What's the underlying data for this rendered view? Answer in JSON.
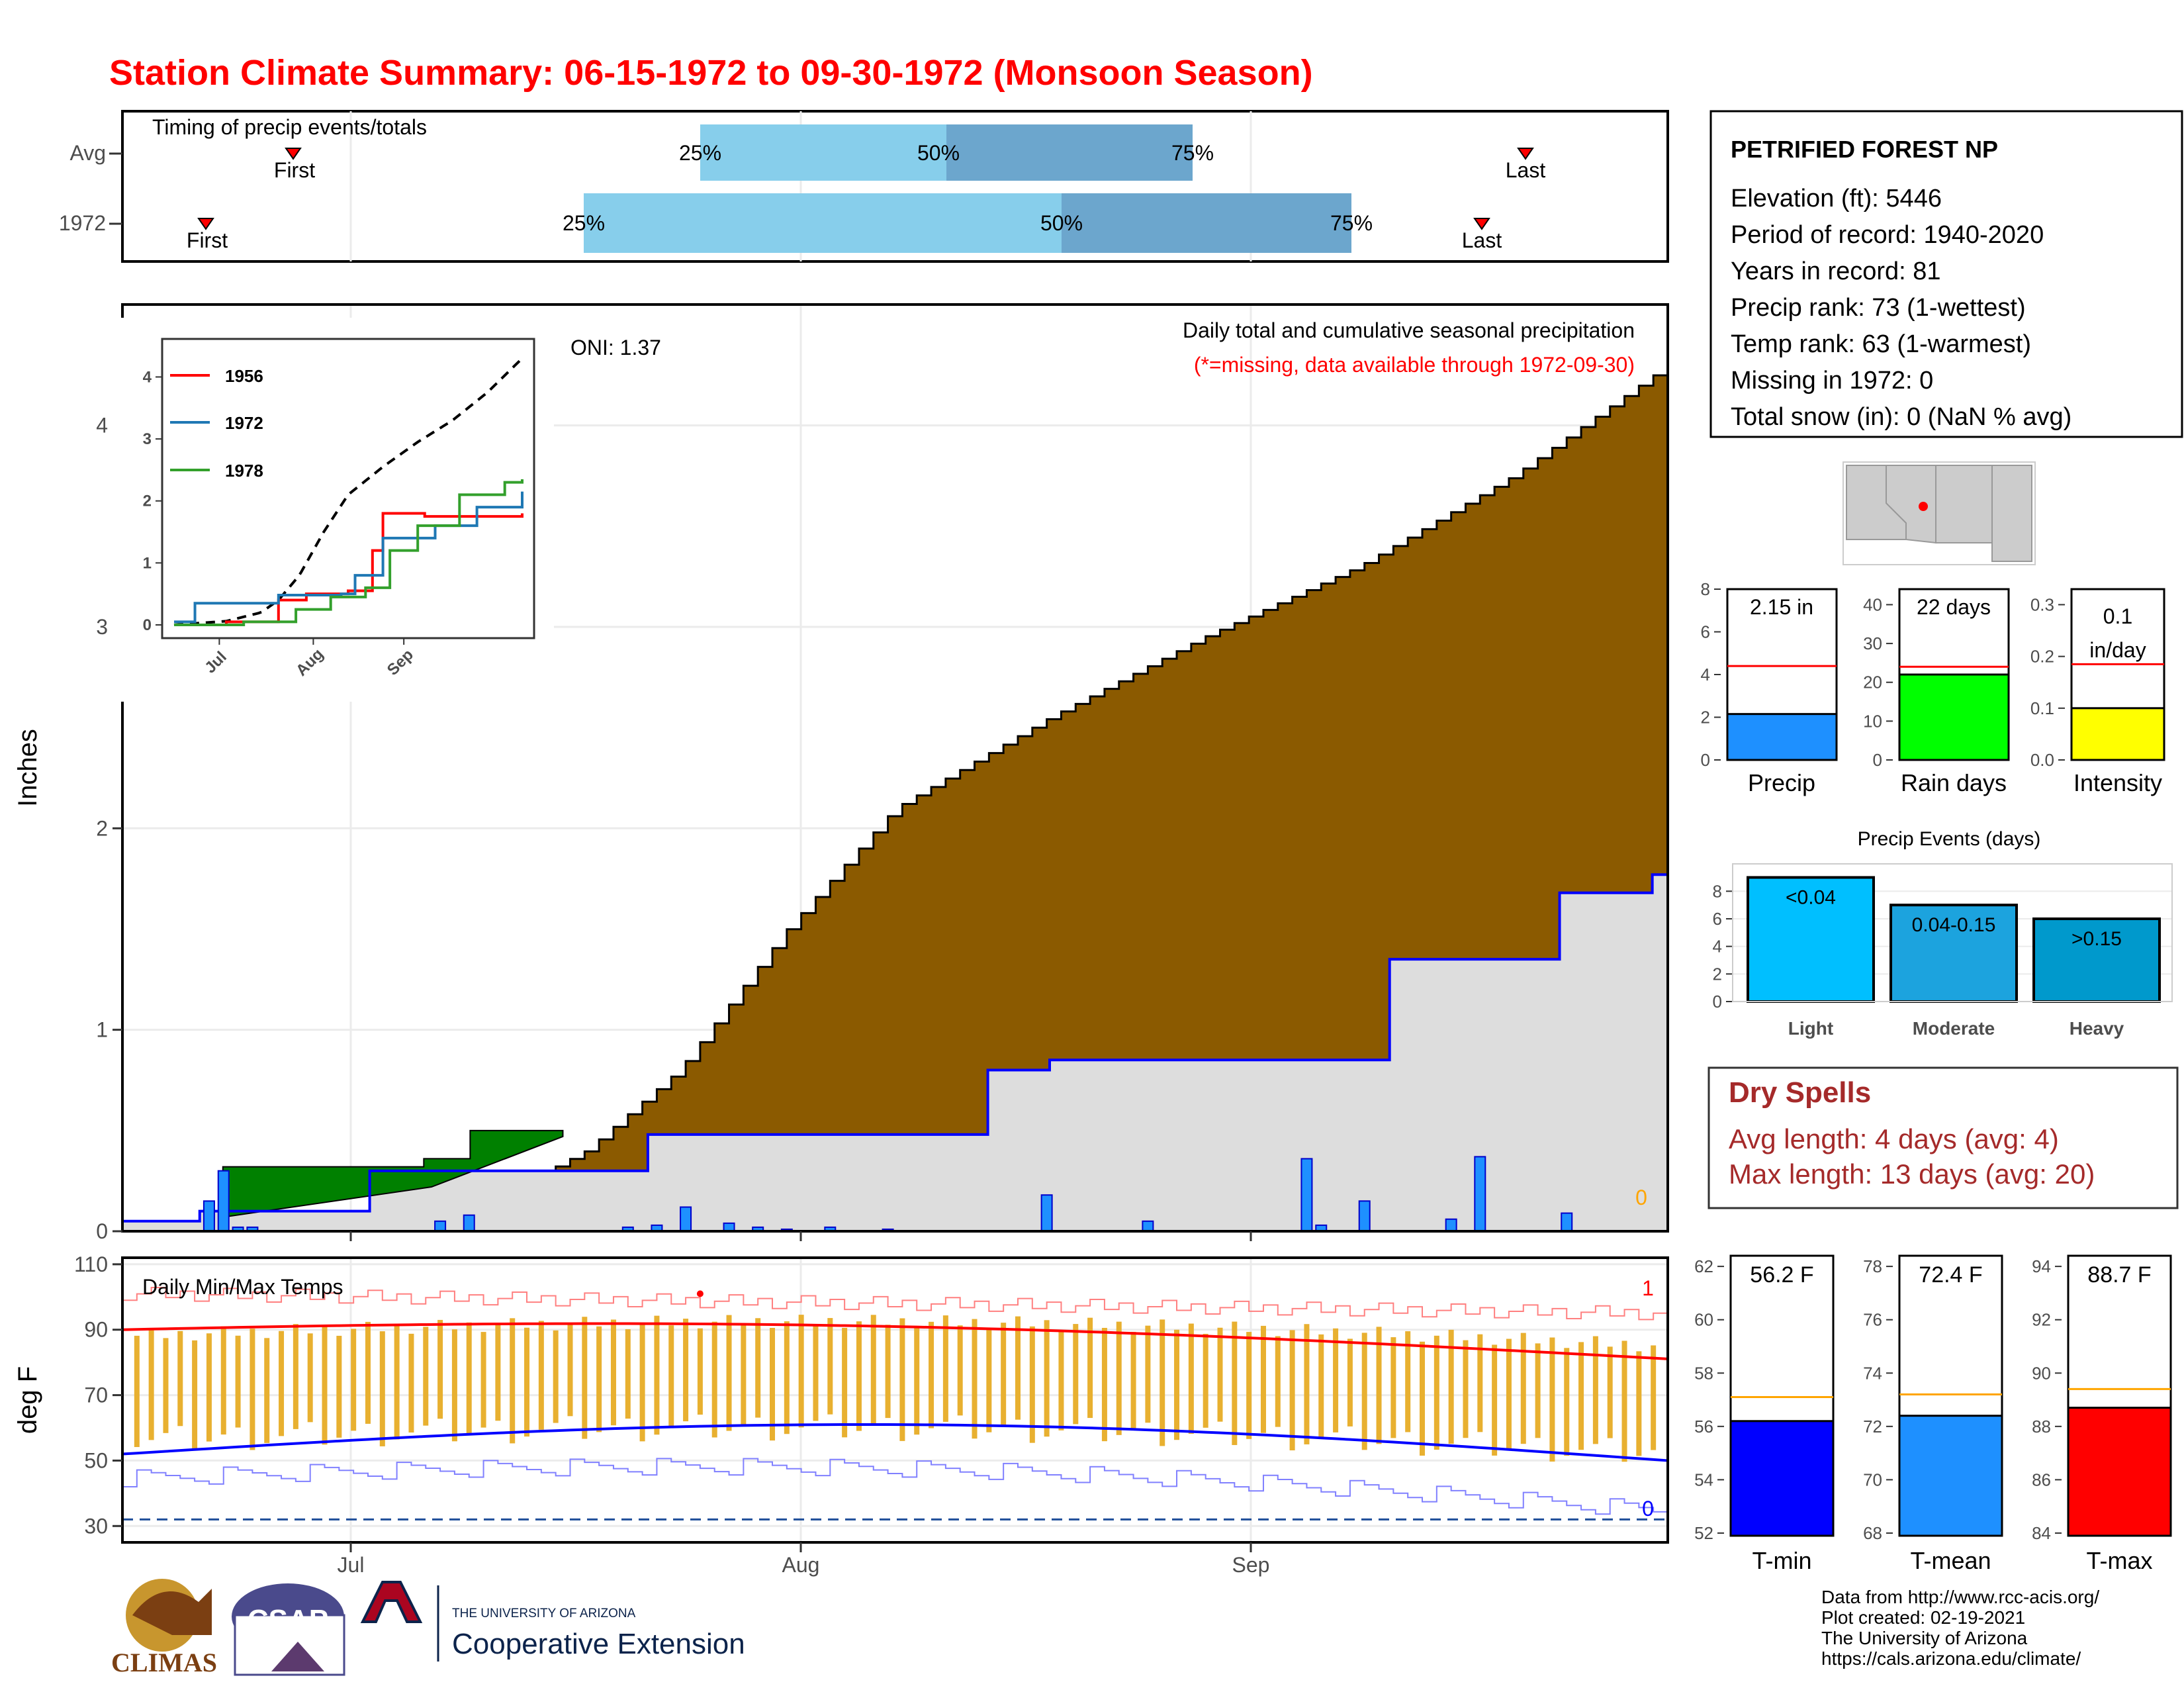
{
  "title": "Station Climate Summary: 06-15-1972 to 09-30-1972 (Monsoon Season)",
  "timing": {
    "label": "Timing of precip events/totals",
    "rows": [
      {
        "label": "Avg",
        "first": "First",
        "last": "Last",
        "p25": "25%",
        "p50": "50%",
        "p75": "75%"
      },
      {
        "label": "1972",
        "first": "First",
        "last": "Last",
        "p25": "25%",
        "p50": "50%",
        "p75": "75%"
      }
    ]
  },
  "main_plot": {
    "ylabel": "Inches",
    "yticks": [
      "0",
      "1",
      "2",
      "3",
      "4"
    ],
    "oni": "ONI: 1.37",
    "caption": "Daily total and cumulative seasonal precipitation",
    "missing_note": "(*=missing, data available through 1972-09-30)",
    "missing_count": "0"
  },
  "inset": {
    "legend": [
      "1956",
      "1972",
      "1978"
    ],
    "yticks": [
      "0",
      "1",
      "2",
      "3",
      "4"
    ],
    "xticks": [
      "Jul",
      "Aug",
      "Sep"
    ]
  },
  "temp_plot": {
    "ylabel": "deg F",
    "label": "Daily Min/Max Temps",
    "yticks": [
      "30",
      "50",
      "70",
      "90",
      "110"
    ],
    "xticks": [
      "Jul",
      "Aug",
      "Sep"
    ],
    "record_high_count": "1",
    "record_low_count": "0"
  },
  "station": {
    "name": "PETRIFIED FOREST NP",
    "lines": [
      "Elevation (ft): 5446",
      "Period of record: 1940-2020",
      "Years in record: 81",
      "Precip rank: 73 (1-wettest)",
      "Temp rank: 63 (1-warmest)",
      "Missing in 1972: 0",
      "Total snow (in): 0 (NaN % avg)"
    ]
  },
  "mini_bars": {
    "precip": {
      "label": "Precip",
      "value_text": "2.15 in",
      "yticks": [
        "0",
        "2",
        "4",
        "6",
        "8"
      ]
    },
    "raindays": {
      "label": "Rain days",
      "value_text": "22 days",
      "yticks": [
        "0",
        "10",
        "20",
        "30",
        "40"
      ]
    },
    "intensity": {
      "label": "Intensity",
      "value_text": "0.1",
      "value_text2": "in/day",
      "yticks": [
        "0.0",
        "0.1",
        "0.2",
        "0.3"
      ]
    }
  },
  "events": {
    "title": "Precip Events (days)",
    "yticks": [
      "0",
      "2",
      "4",
      "6",
      "8"
    ],
    "bars": [
      {
        "label": "Light",
        "text": "<0.04",
        "value": 9,
        "color": "#00BFFF"
      },
      {
        "label": "Moderate",
        "text": "0.04-0.15",
        "value": 7,
        "color": "#1CA3DE"
      },
      {
        "label": "Heavy",
        "text": ">0.15",
        "value": 6,
        "color": "#0099CC"
      }
    ]
  },
  "dry_spells": {
    "title": "Dry Spells",
    "avg": "Avg length: 4 days (avg: 4)",
    "max": "Max length: 13 days (avg: 20)"
  },
  "temp_bars": {
    "tmin": {
      "label": "T-min",
      "value_text": "56.2 F",
      "value": 56.2,
      "avg": 57.1,
      "yticks": [
        "52",
        "54",
        "56",
        "58",
        "60",
        "62"
      ],
      "color": "#0000FF"
    },
    "tmean": {
      "label": "T-mean",
      "value_text": "72.4 F",
      "value": 72.4,
      "avg": 73.2,
      "yticks": [
        "68",
        "70",
        "72",
        "74",
        "76",
        "78"
      ],
      "color": "#1E90FF"
    },
    "tmax": {
      "label": "T-max",
      "value_text": "88.7 F",
      "value": 88.7,
      "avg": 89.4,
      "yticks": [
        "84",
        "86",
        "88",
        "90",
        "92",
        "94"
      ],
      "color": "#FF0000"
    }
  },
  "footer": {
    "lines": [
      "Data from http://www.rcc-acis.org/",
      "Plot created: 02-19-2021",
      "The University of Arizona",
      "https://cals.arizona.edu/climate/"
    ],
    "climas": "CLIMAS",
    "csap": "CSAP",
    "ua_small": "THE UNIVERSITY OF ARIZONA",
    "ua_ext": "Cooperative Extension"
  },
  "chart_data": {
    "type": "area",
    "title": "Daily total and cumulative seasonal precipitation",
    "ylabel": "Inches",
    "ylim": [
      0,
      4.6
    ],
    "season_start": "1972-06-15",
    "season_end": "1972-09-30",
    "series": [
      {
        "name": "1972",
        "cumulative_points": [
          [
            0,
            0.05
          ],
          [
            0.05,
            0.1
          ],
          [
            0.16,
            0.3
          ],
          [
            0.34,
            0.48
          ],
          [
            0.46,
            0.48
          ],
          [
            0.56,
            0.8
          ],
          [
            0.6,
            0.85
          ],
          [
            0.82,
            1.35
          ],
          [
            0.88,
            1.35
          ],
          [
            0.93,
            1.68
          ],
          [
            0.99,
            1.77
          ],
          [
            1.0,
            2.15
          ]
        ]
      },
      {
        "name": "average",
        "cumulative_points": [
          [
            0,
            0
          ],
          [
            0.15,
            0.06
          ],
          [
            0.25,
            0.2
          ],
          [
            0.3,
            0.4
          ],
          [
            0.36,
            0.8
          ],
          [
            0.43,
            1.5
          ],
          [
            0.5,
            2.1
          ],
          [
            0.6,
            2.55
          ],
          [
            0.7,
            2.95
          ],
          [
            0.8,
            3.3
          ],
          [
            0.9,
            3.75
          ],
          [
            1.0,
            4.3
          ]
        ]
      }
    ],
    "daily_days": [
      6,
      7,
      8,
      9,
      22,
      24,
      35,
      37,
      39,
      42,
      44,
      46,
      49,
      53,
      64,
      71,
      82,
      83,
      86,
      92,
      94,
      100
    ],
    "daily_values": [
      0.15,
      0.3,
      0.02,
      0.02,
      0.05,
      0.08,
      0.02,
      0.03,
      0.12,
      0.04,
      0.02,
      0.01,
      0.02,
      0.01,
      0.18,
      0.05,
      0.36,
      0.03,
      0.15,
      0.06,
      0.37,
      0.09
    ]
  }
}
